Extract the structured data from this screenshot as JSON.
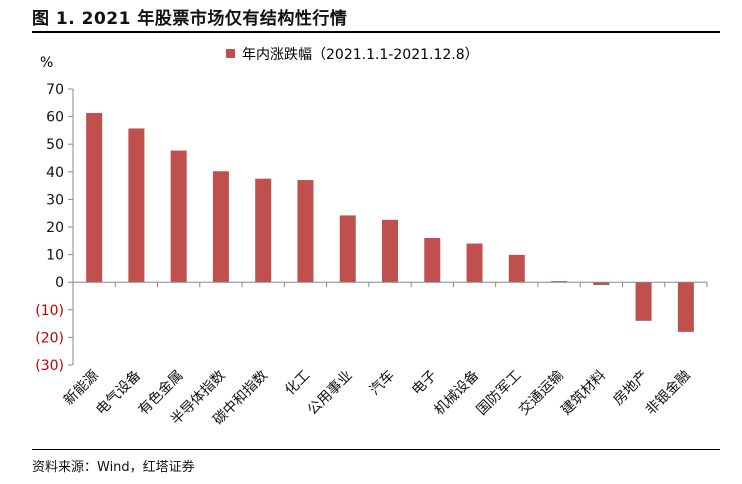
{
  "header": {
    "title": "图 1. 2021 年股票市场仅有结构性行情"
  },
  "footer": {
    "source": "资料来源：Wind，红塔证券"
  },
  "colors": {
    "bar": "#C0504D",
    "negative_tick": "#C00000",
    "axis": "#888888"
  },
  "chart_data": {
    "type": "bar",
    "ylabel": "%",
    "ylim": [
      -30,
      70
    ],
    "yticks": [
      70,
      60,
      50,
      40,
      30,
      20,
      10,
      0,
      -10,
      -20,
      -30
    ],
    "ytick_labels": [
      "70",
      "60",
      "50",
      "40",
      "30",
      "20",
      "10",
      "0",
      "(10)",
      "(20)",
      "(30)"
    ],
    "legend": "top-center",
    "grid": false,
    "categories": [
      "新能源",
      "电气设备",
      "有色金属",
      "半导体指数",
      "碳中和指数",
      "化工",
      "公用事业",
      "汽车",
      "电子",
      "机械设备",
      "国防军工",
      "交通运输",
      "建筑材料",
      "房地产",
      "非银金融"
    ],
    "series": [
      {
        "name": "年内涨跌幅（2021.1.1-2021.12.8）",
        "values": [
          61.3,
          55.7,
          47.7,
          40.2,
          37.5,
          37.0,
          24.2,
          22.6,
          16.0,
          14.0,
          9.9,
          0.4,
          -1.0,
          -14.0,
          -18.0
        ]
      }
    ]
  }
}
